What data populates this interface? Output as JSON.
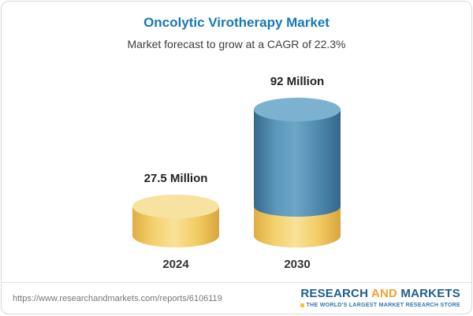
{
  "chart_data": {
    "type": "bar",
    "subtype": "3d-cylinder",
    "title": "Oncolytic Virotherapy Market",
    "subtitle": "Market forecast to grow at a CAGR of 22.3%",
    "categories": [
      "2024",
      "2030"
    ],
    "values": [
      27.5,
      92
    ],
    "unit": "Million",
    "value_labels": [
      "27.5 Million",
      "92 Million"
    ],
    "ylim": [
      0,
      92
    ],
    "gridlines": false,
    "legend": false,
    "colors": {
      "bar_2024": "#f3d06a",
      "bar_2030_growth": "#4c89ae",
      "bar_2030_base": "#f3d06a",
      "title_text": "#1779b8"
    }
  },
  "footer": {
    "url": "https://www.researchandmarkets.com/reports/6106119",
    "logo": {
      "word1": "RESEARCH",
      "word2": "AND",
      "word3": "MARKETS",
      "tagline": "THE WORLD'S LARGEST MARKET RESEARCH STORE",
      "brand_blue": "#1c5d8f",
      "brand_orange": "#f0a132"
    }
  }
}
